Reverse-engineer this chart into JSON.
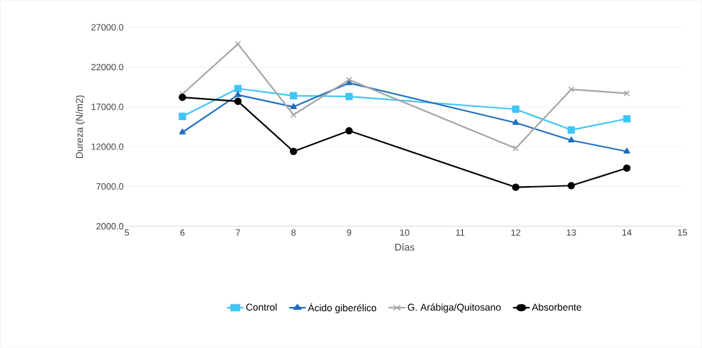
{
  "chart_data": {
    "type": "line",
    "xlabel": "Días",
    "ylabel": "Dureza (N/m2)",
    "xlim": [
      5,
      15
    ],
    "xticks": [
      5,
      6,
      7,
      8,
      9,
      10,
      11,
      12,
      13,
      14,
      15
    ],
    "ylim": [
      2000,
      27000
    ],
    "yticks": [
      {
        "value": 2000,
        "label": "2000.0"
      },
      {
        "value": 7000,
        "label": "7000.0"
      },
      {
        "value": 12000,
        "label": "12000.0"
      },
      {
        "value": 17000,
        "label": "17000.0"
      },
      {
        "value": 22000,
        "label": "22000.0"
      },
      {
        "value": 27000,
        "label": "27000.0"
      }
    ],
    "grid": "y",
    "legend": "bottom",
    "x": [
      6,
      7,
      8,
      9,
      12,
      13,
      14
    ],
    "series": [
      {
        "name": "Control",
        "color": "#3fc6f4",
        "marker": "square",
        "values": [
          15800,
          19300,
          18400,
          18300,
          16700,
          14100,
          15500
        ]
      },
      {
        "name": "Ácido giberélico",
        "color": "#1f6fbf",
        "marker": "triangle",
        "values": [
          13800,
          18500,
          17000,
          20000,
          15000,
          12800,
          11400
        ]
      },
      {
        "name": "G. Arábiga/Quitosano",
        "color": "#a5a5a5",
        "marker": "cross",
        "values": [
          18600,
          24900,
          16000,
          20400,
          11800,
          19200,
          18700
        ]
      },
      {
        "name": "Absorbente",
        "color": "#000000",
        "marker": "circle",
        "values": [
          18200,
          17700,
          11400,
          14000,
          6900,
          7100,
          9300
        ]
      }
    ]
  }
}
